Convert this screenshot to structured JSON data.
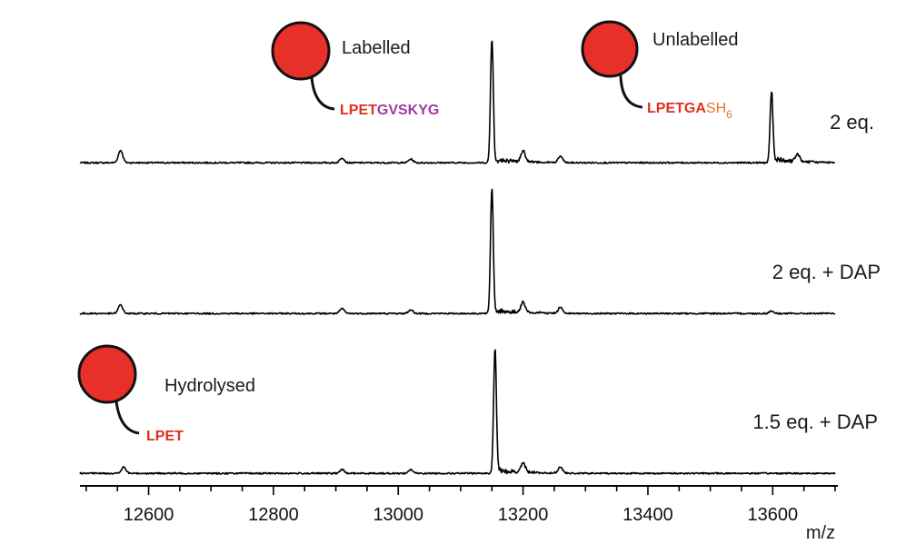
{
  "chart_data": {
    "type": "line",
    "xlabel": "m/z",
    "ylabel": "",
    "xlim": [
      12490,
      13700
    ],
    "xticks": [
      12600,
      12800,
      13000,
      13200,
      13400,
      13600
    ],
    "grid": false,
    "panels": [
      {
        "name": "2 eq.",
        "peaks": [
          {
            "x": 12555,
            "rel": 0.1
          },
          {
            "x": 12910,
            "rel": 0.04
          },
          {
            "x": 13020,
            "rel": 0.03
          },
          {
            "x": 13150,
            "rel": 1.0
          },
          {
            "x": 13200,
            "rel": 0.09
          },
          {
            "x": 13260,
            "rel": 0.05
          },
          {
            "x": 13598,
            "rel": 0.57
          },
          {
            "x": 13640,
            "rel": 0.06
          }
        ]
      },
      {
        "name": "2 eq. + DAP",
        "peaks": [
          {
            "x": 12555,
            "rel": 0.07
          },
          {
            "x": 12910,
            "rel": 0.04
          },
          {
            "x": 13020,
            "rel": 0.03
          },
          {
            "x": 13150,
            "rel": 1.0
          },
          {
            "x": 13200,
            "rel": 0.08
          },
          {
            "x": 13260,
            "rel": 0.05
          },
          {
            "x": 13598,
            "rel": 0.02
          }
        ]
      },
      {
        "name": "1.5 eq. + DAP",
        "peaks": [
          {
            "x": 12560,
            "rel": 0.05
          },
          {
            "x": 12910,
            "rel": 0.03
          },
          {
            "x": 13020,
            "rel": 0.03
          },
          {
            "x": 13155,
            "rel": 1.0
          },
          {
            "x": 13200,
            "rel": 0.08
          },
          {
            "x": 13260,
            "rel": 0.05
          }
        ]
      }
    ],
    "annotations": {
      "labelled": {
        "title": "Labelled",
        "seq_red": "LPET",
        "seq_purple": "GVSKYG"
      },
      "unlabelled": {
        "title": "Unlabelled",
        "seq_red": "LPETGA",
        "seq_orange": "SH",
        "seq_sub": "6"
      },
      "hydrolysed": {
        "title": "Hydrolysed",
        "seq_red": "LPET"
      }
    },
    "colors": {
      "circle_fill": "#e8302a",
      "peptide_red": "#e0301e",
      "peptide_purple": "#a13aa0",
      "peptide_orange": "#e8702a",
      "trace": "#000000"
    }
  }
}
